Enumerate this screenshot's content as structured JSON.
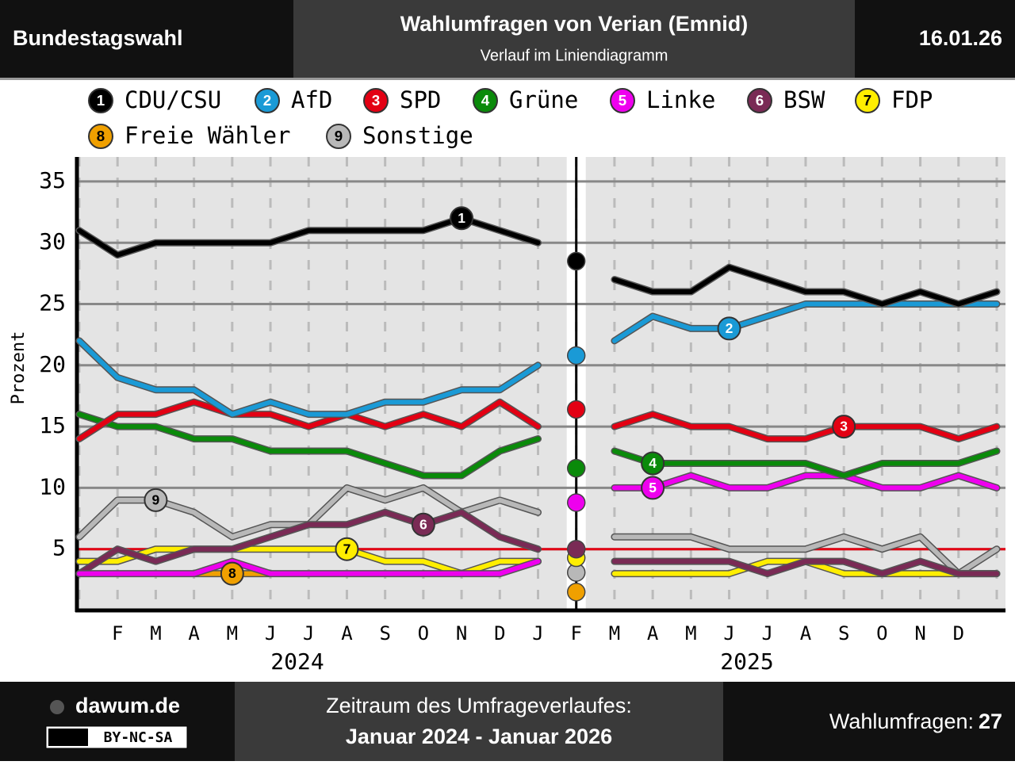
{
  "header": {
    "left": "Bundestagswahl",
    "title": "Wahlumfragen von Verian (Emnid)",
    "subtitle": "Verlauf im Liniendiagramm",
    "date": "16.01.26"
  },
  "chart_data": {
    "type": "line",
    "y_label": "Prozent",
    "categories": [
      null,
      "F",
      "M",
      "A",
      "M",
      "J",
      "J",
      "A",
      "S",
      "O",
      "N",
      "D",
      "J",
      "F",
      "M",
      "A",
      "M",
      "J",
      "J",
      "A",
      "S",
      "O",
      "N",
      "D",
      null
    ],
    "years": [
      "2024",
      "2025"
    ],
    "ylim": [
      0,
      37
    ],
    "yticks": [
      5,
      10,
      15,
      20,
      25,
      30,
      35
    ],
    "grid": true,
    "threshold": 5,
    "threshold_color": "#e30013",
    "series": [
      {
        "number": "1",
        "name": "CDU/CSU",
        "color": "#000000",
        "election": 28.5,
        "values": [
          31,
          29,
          30,
          30,
          30,
          30,
          31,
          31,
          31,
          31,
          32,
          31,
          30,
          null,
          27,
          26,
          26,
          28,
          27,
          26,
          26,
          25,
          26,
          25,
          26
        ]
      },
      {
        "number": "2",
        "name": "AfD",
        "color": "#1a9ad6",
        "election": 20.8,
        "values": [
          22,
          19,
          18,
          18,
          16,
          17,
          16,
          16,
          17,
          17,
          18,
          18,
          20,
          null,
          22,
          24,
          23,
          23,
          24,
          25,
          25,
          25,
          25,
          25,
          25
        ]
      },
      {
        "number": "3",
        "name": "SPD",
        "color": "#e30013",
        "election": 16.4,
        "values": [
          14,
          16,
          16,
          17,
          16,
          16,
          15,
          16,
          15,
          16,
          15,
          17,
          15,
          null,
          15,
          16,
          15,
          15,
          14,
          14,
          15,
          15,
          15,
          14,
          15
        ]
      },
      {
        "number": "4",
        "name": "Grüne",
        "color": "#0a8a0a",
        "election": 11.6,
        "values": [
          16,
          15,
          15,
          14,
          14,
          13,
          13,
          13,
          12,
          11,
          11,
          13,
          14,
          null,
          13,
          12,
          12,
          12,
          12,
          12,
          11,
          12,
          12,
          12,
          13
        ]
      },
      {
        "number": "5",
        "name": "Linke",
        "color": "#ee00ee",
        "election": 8.8,
        "values": [
          3,
          3,
          3,
          3,
          4,
          3,
          3,
          3,
          3,
          3,
          3,
          3,
          4,
          null,
          10,
          10,
          11,
          10,
          10,
          11,
          11,
          10,
          10,
          11,
          10
        ]
      },
      {
        "number": "6",
        "name": "BSW",
        "color": "#7a2a55",
        "election": 5.0,
        "values": [
          3,
          5,
          4,
          5,
          5,
          6,
          7,
          7,
          8,
          7,
          8,
          6,
          5,
          null,
          4,
          4,
          4,
          4,
          3,
          4,
          4,
          3,
          4,
          3,
          3
        ]
      },
      {
        "number": "7",
        "name": "FDP",
        "color": "#ffee00",
        "election": 4.3,
        "values": [
          4,
          4,
          5,
          5,
          5,
          5,
          5,
          5,
          4,
          4,
          3,
          4,
          4,
          null,
          3,
          3,
          3,
          3,
          4,
          4,
          3,
          3,
          3,
          3,
          3
        ]
      },
      {
        "number": "8",
        "name": "Freie Wähler",
        "color": "#f0a000",
        "election": 1.5,
        "values": [
          null,
          null,
          null,
          3,
          3,
          3,
          null,
          null,
          null,
          3,
          null,
          null,
          null,
          null,
          null,
          null,
          null,
          null,
          null,
          null,
          null,
          null,
          null,
          3,
          null
        ]
      },
      {
        "number": "9",
        "name": "Sonstige",
        "color": "#b8b8b8",
        "election": 3.1,
        "values": [
          6,
          9,
          9,
          8,
          6,
          7,
          7,
          10,
          9,
          10,
          8,
          9,
          8,
          null,
          6,
          6,
          6,
          5,
          5,
          5,
          6,
          5,
          6,
          3,
          5
        ]
      }
    ]
  },
  "footer": {
    "site": "dawum.de",
    "license": "BY-NC-SA",
    "period_label": "Zeitraum des Umfrageverlaufes:",
    "period": "Januar 2024 - Januar 2026",
    "poll_count_label": "Wahlumfragen:",
    "poll_count": "27"
  }
}
